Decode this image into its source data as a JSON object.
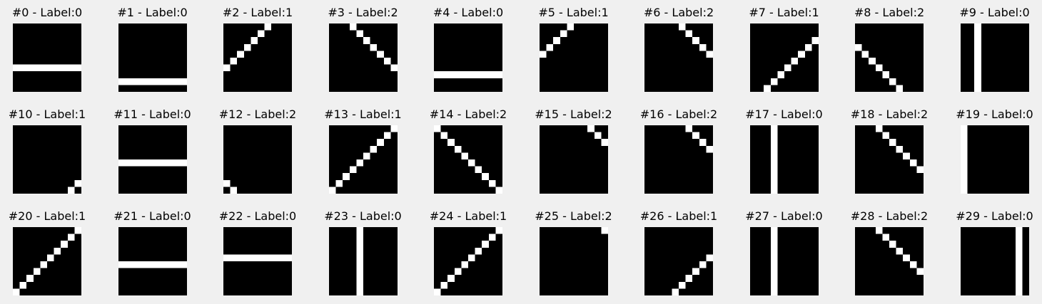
{
  "grid": {
    "rows": 3,
    "cols": 10,
    "pixels_per_side": 10
  },
  "colors": {
    "background": "#f0f0f0",
    "ink": "#000000",
    "stroke": "#ffffff"
  },
  "panels": [
    {
      "title": "#0 - Label:0",
      "pattern": {
        "type": "hline",
        "index": 6
      }
    },
    {
      "title": "#1 - Label:0",
      "pattern": {
        "type": "hline",
        "index": 8
      }
    },
    {
      "title": "#2 - Label:1",
      "pattern": {
        "type": "anti",
        "c": 6,
        "from": 0,
        "to": 6
      }
    },
    {
      "title": "#3 - Label:2",
      "pattern": {
        "type": "main",
        "d": 3,
        "from": 0,
        "to": 6
      }
    },
    {
      "title": "#4 - Label:0",
      "pattern": {
        "type": "hline",
        "index": 7
      }
    },
    {
      "title": "#5 - Label:1",
      "pattern": {
        "type": "anti",
        "c": 4,
        "from": 0,
        "to": 4
      }
    },
    {
      "title": "#6 - Label:2",
      "pattern": {
        "type": "main",
        "d": 5,
        "from": 0,
        "to": 4
      }
    },
    {
      "title": "#7 - Label:1",
      "pattern": {
        "type": "anti",
        "c": 11,
        "from": 2,
        "to": 9
      }
    },
    {
      "title": "#8 - Label:2",
      "pattern": {
        "type": "main",
        "d": -3,
        "from": 3,
        "to": 9
      }
    },
    {
      "title": "#9 - Label:0",
      "pattern": {
        "type": "vline",
        "index": 2
      }
    },
    {
      "title": "#10 - Label:1",
      "pattern": {
        "type": "anti",
        "c": 17,
        "from": 8,
        "to": 9
      }
    },
    {
      "title": "#11 - Label:0",
      "pattern": {
        "type": "hline",
        "index": 5
      }
    },
    {
      "title": "#12 - Label:2",
      "pattern": {
        "type": "main",
        "d": -8,
        "from": 8,
        "to": 9
      }
    },
    {
      "title": "#13 - Label:1",
      "pattern": {
        "type": "anti",
        "c": 9,
        "from": 0,
        "to": 9
      }
    },
    {
      "title": "#14 - Label:2",
      "pattern": {
        "type": "main",
        "d": 0,
        "from": 0,
        "to": 9
      }
    },
    {
      "title": "#15 - Label:2",
      "pattern": {
        "type": "main",
        "d": 7,
        "from": 0,
        "to": 2
      }
    },
    {
      "title": "#16 - Label:2",
      "pattern": {
        "type": "main",
        "d": 6,
        "from": 0,
        "to": 3
      }
    },
    {
      "title": "#17 - Label:0",
      "pattern": {
        "type": "vline",
        "index": 3
      }
    },
    {
      "title": "#18 - Label:2",
      "pattern": {
        "type": "main",
        "d": 3,
        "from": 0,
        "to": 6
      }
    },
    {
      "title": "#19 - Label:0",
      "pattern": {
        "type": "vline",
        "index": 0
      }
    },
    {
      "title": "#20 - Label:1",
      "pattern": {
        "type": "anti",
        "c": 9,
        "from": 0,
        "to": 9
      }
    },
    {
      "title": "#21 - Label:0",
      "pattern": {
        "type": "hline",
        "index": 5
      }
    },
    {
      "title": "#22 - Label:0",
      "pattern": {
        "type": "hline",
        "index": 4
      }
    },
    {
      "title": "#23 - Label:0",
      "pattern": {
        "type": "vline",
        "index": 4
      }
    },
    {
      "title": "#24 - Label:1",
      "pattern": {
        "type": "anti",
        "c": 9,
        "from": 0,
        "to": 9
      }
    },
    {
      "title": "#25 - Label:2",
      "pattern": {
        "type": "main",
        "d": 9,
        "from": 0,
        "to": 0
      }
    },
    {
      "title": "#26 - Label:1",
      "pattern": {
        "type": "anti",
        "c": 13,
        "from": 4,
        "to": 9
      }
    },
    {
      "title": "#27 - Label:0",
      "pattern": {
        "type": "vline",
        "index": 3
      }
    },
    {
      "title": "#28 - Label:2",
      "pattern": {
        "type": "main",
        "d": 3,
        "from": 0,
        "to": 6
      }
    },
    {
      "title": "#29 - Label:0",
      "pattern": {
        "type": "vline",
        "index": 8
      }
    }
  ]
}
